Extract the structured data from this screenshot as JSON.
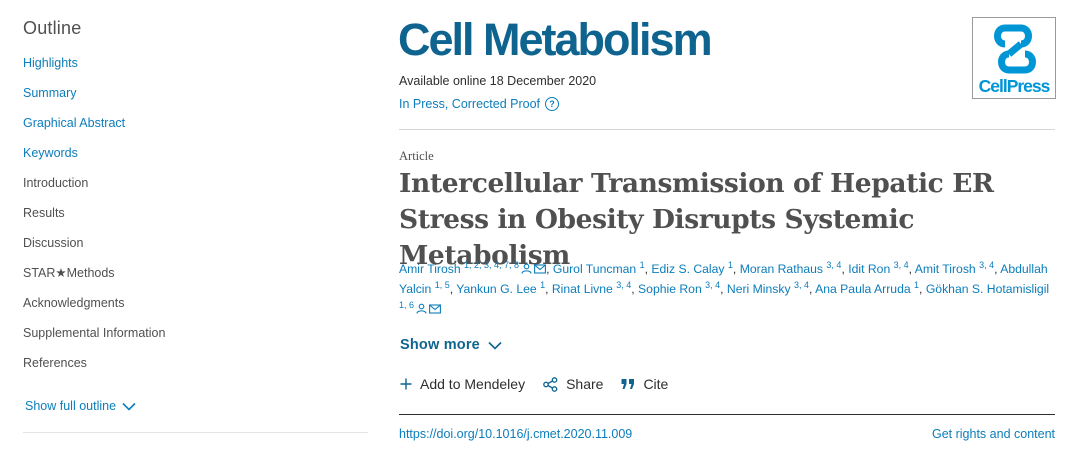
{
  "outline": {
    "title": "Outline",
    "items": [
      {
        "label": "Highlights"
      },
      {
        "label": "Summary"
      },
      {
        "label": "Graphical Abstract"
      },
      {
        "label": "Keywords"
      },
      {
        "label": "Introduction"
      },
      {
        "label": "Results"
      },
      {
        "label": "Discussion"
      },
      {
        "label": "STAR★Methods"
      },
      {
        "label": "Acknowledgments"
      },
      {
        "label": "Supplemental Information"
      },
      {
        "label": "References"
      }
    ],
    "show_full_label": "Show full outline"
  },
  "header": {
    "journal": "Cell Metabolism",
    "available": "Available online 18 December 2020",
    "status": "In Press, Corrected Proof",
    "publisher_logo": "CellPress"
  },
  "article": {
    "type": "Article",
    "title": "Intercellular Transmission of Hepatic ER Stress in Obesity Disrupts Systemic Metabolism"
  },
  "authors": [
    {
      "name": "Amir Tirosh",
      "sup": "1, 2, 3, 4, 7, 8"
    },
    {
      "name": "Gurol Tuncman",
      "sup": "1"
    },
    {
      "name": "Ediz S. Calay",
      "sup": "1"
    },
    {
      "name": "Moran Rathaus",
      "sup": "3, 4"
    },
    {
      "name": "Idit Ron",
      "sup": "3, 4"
    },
    {
      "name": "Amit Tirosh",
      "sup": "3, 4"
    },
    {
      "name": "Abdullah Yalcin",
      "sup": "1, 5"
    },
    {
      "name": "Yankun G. Lee",
      "sup": "1"
    },
    {
      "name": "Rinat Livne",
      "sup": "3, 4"
    },
    {
      "name": "Sophie Ron",
      "sup": "3, 4"
    },
    {
      "name": "Neri Minsky",
      "sup": "3, 4"
    },
    {
      "name": "Ana Paula Arruda",
      "sup": "1"
    },
    {
      "name": "Gökhan S. Hotamisligil",
      "sup": "1, 6"
    }
  ],
  "show_more": "Show more",
  "actions": {
    "mendeley": "Add to Mendeley",
    "share": "Share",
    "cite": "Cite"
  },
  "footer": {
    "doi": "https://doi.org/10.1016/j.cmet.2020.11.009",
    "rights": "Get rights and content"
  },
  "colors": {
    "link": "#0c7dbb",
    "journal": "#0e648f",
    "cellpress": "#0096d6",
    "text": "#2e2e2e"
  }
}
